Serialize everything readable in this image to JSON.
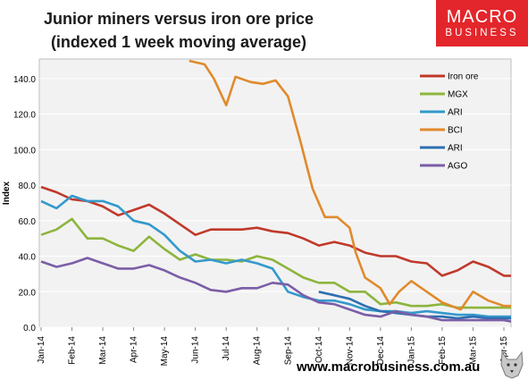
{
  "title_line1": "Junior miners versus iron ore price",
  "title_line2": "(indexed 1 week moving average)",
  "logo": {
    "line1": "MACRO",
    "line2": "BUSINESS",
    "color": "#e3262b"
  },
  "footer_url": "www.macrobusiness.com.au",
  "chart_data": {
    "type": "line",
    "ylabel": "Index",
    "xlabel": "",
    "ylim": [
      0,
      150
    ],
    "yticks": [
      0,
      20,
      40,
      60,
      80,
      100,
      120,
      140
    ],
    "ytick_labels": [
      "0.0",
      "20.0",
      "40.0",
      "60.0",
      "80.0",
      "100.0",
      "120.0",
      "140.0"
    ],
    "categories": [
      "Jan-14",
      "Feb-14",
      "Mar-14",
      "Apr-14",
      "May-14",
      "Jun-14",
      "Jul-14",
      "Aug-14",
      "Sep-14",
      "Oct-14",
      "Nov-14",
      "Dec-14",
      "Jan-15",
      "Feb-15",
      "Mar-15",
      "Apr-15"
    ],
    "grid": true,
    "legend_position": "top-right",
    "plot_background": "#f2f2f2",
    "series": [
      {
        "name": "Iron ore",
        "color": "#c0392b",
        "points": [
          [
            0,
            79
          ],
          [
            0.5,
            76
          ],
          [
            1,
            72
          ],
          [
            1.5,
            71
          ],
          [
            2,
            68
          ],
          [
            2.5,
            63
          ],
          [
            3,
            66
          ],
          [
            3.5,
            69
          ],
          [
            4,
            64
          ],
          [
            4.5,
            58
          ],
          [
            5,
            52
          ],
          [
            5.5,
            55
          ],
          [
            6,
            55
          ],
          [
            6.5,
            55
          ],
          [
            7,
            56
          ],
          [
            7.5,
            54
          ],
          [
            8,
            53
          ],
          [
            8.5,
            50
          ],
          [
            9,
            46
          ],
          [
            9.5,
            48
          ],
          [
            10,
            46
          ],
          [
            10.5,
            42
          ],
          [
            11,
            40
          ],
          [
            11.5,
            40
          ],
          [
            12,
            37
          ],
          [
            12.5,
            36
          ],
          [
            13,
            29
          ],
          [
            13.5,
            32
          ],
          [
            14,
            37
          ],
          [
            14.5,
            34
          ],
          [
            15,
            29
          ],
          [
            15.3,
            29
          ]
        ]
      },
      {
        "name": "MGX",
        "color": "#8db53c",
        "points": [
          [
            0,
            52
          ],
          [
            0.5,
            55
          ],
          [
            1,
            61
          ],
          [
            1.5,
            50
          ],
          [
            2,
            50
          ],
          [
            2.5,
            46
          ],
          [
            3,
            43
          ],
          [
            3.5,
            51
          ],
          [
            4,
            44
          ],
          [
            4.5,
            38
          ],
          [
            5,
            41
          ],
          [
            5.5,
            38
          ],
          [
            6,
            38
          ],
          [
            6.5,
            37
          ],
          [
            7,
            40
          ],
          [
            7.5,
            38
          ],
          [
            8,
            33
          ],
          [
            8.5,
            28
          ],
          [
            9,
            25
          ],
          [
            9.5,
            25
          ],
          [
            10,
            20
          ],
          [
            10.5,
            20
          ],
          [
            11,
            13
          ],
          [
            11.5,
            14
          ],
          [
            12,
            12
          ],
          [
            12.5,
            12
          ],
          [
            13,
            13
          ],
          [
            13.5,
            11
          ],
          [
            14,
            11
          ],
          [
            14.5,
            11
          ],
          [
            15,
            11
          ],
          [
            15.3,
            11
          ]
        ]
      },
      {
        "name": "ARI",
        "color": "#3399cc",
        "points": [
          [
            0,
            71
          ],
          [
            0.5,
            67
          ],
          [
            1,
            74
          ],
          [
            1.5,
            71
          ],
          [
            2,
            71
          ],
          [
            2.5,
            68
          ],
          [
            3,
            60
          ],
          [
            3.5,
            58
          ],
          [
            4,
            52
          ],
          [
            4.5,
            43
          ],
          [
            5,
            37
          ],
          [
            5.5,
            38
          ],
          [
            6,
            36
          ],
          [
            6.5,
            38
          ],
          [
            7,
            36
          ],
          [
            7.5,
            33
          ],
          [
            8,
            20
          ],
          [
            8.5,
            17
          ],
          [
            9,
            15
          ],
          [
            9.5,
            15
          ],
          [
            10,
            13
          ],
          [
            10.5,
            10
          ],
          [
            11,
            9
          ],
          [
            11.5,
            9
          ],
          [
            12,
            8
          ],
          [
            12.5,
            9
          ],
          [
            13,
            8
          ],
          [
            13.5,
            7
          ],
          [
            14,
            7
          ],
          [
            14.5,
            6
          ],
          [
            15,
            6
          ],
          [
            15.3,
            6
          ]
        ]
      },
      {
        "name": "BCI",
        "color": "#e08a2c",
        "points": [
          [
            4.8,
            150
          ],
          [
            5.3,
            148
          ],
          [
            5.6,
            140
          ],
          [
            6.0,
            125
          ],
          [
            6.3,
            141
          ],
          [
            6.8,
            138
          ],
          [
            7.2,
            137
          ],
          [
            7.6,
            139
          ],
          [
            8.0,
            130
          ],
          [
            8.4,
            105
          ],
          [
            8.8,
            78
          ],
          [
            9.2,
            62
          ],
          [
            9.6,
            62
          ],
          [
            10.0,
            56
          ],
          [
            10.2,
            42
          ],
          [
            10.5,
            28
          ],
          [
            11.0,
            22
          ],
          [
            11.3,
            13
          ],
          [
            11.6,
            20
          ],
          [
            12.0,
            26
          ],
          [
            12.5,
            20
          ],
          [
            13.0,
            14
          ],
          [
            13.3,
            12
          ],
          [
            13.6,
            10
          ],
          [
            14.0,
            20
          ],
          [
            14.5,
            15
          ],
          [
            15.0,
            12
          ],
          [
            15.3,
            12
          ]
        ]
      },
      {
        "name": "ARI",
        "color": "#2e6fb0",
        "points": [
          [
            9,
            20
          ],
          [
            9.5,
            18
          ],
          [
            10,
            16
          ],
          [
            10.5,
            12
          ],
          [
            11,
            9
          ],
          [
            11.5,
            8
          ],
          [
            12,
            7
          ],
          [
            12.5,
            6
          ],
          [
            13,
            6
          ],
          [
            13.5,
            5
          ],
          [
            14,
            6
          ],
          [
            14.5,
            5
          ],
          [
            15,
            5
          ],
          [
            15.3,
            5
          ]
        ]
      },
      {
        "name": "AGO",
        "color": "#7b5ea7",
        "points": [
          [
            0,
            37
          ],
          [
            0.5,
            34
          ],
          [
            1,
            36
          ],
          [
            1.5,
            39
          ],
          [
            2,
            36
          ],
          [
            2.5,
            33
          ],
          [
            3,
            33
          ],
          [
            3.5,
            35
          ],
          [
            4,
            32
          ],
          [
            4.5,
            28
          ],
          [
            5,
            25
          ],
          [
            5.5,
            21
          ],
          [
            6,
            20
          ],
          [
            6.5,
            22
          ],
          [
            7,
            22
          ],
          [
            7.5,
            25
          ],
          [
            8,
            24
          ],
          [
            8.5,
            18
          ],
          [
            9,
            14
          ],
          [
            9.5,
            13
          ],
          [
            10,
            10
          ],
          [
            10.5,
            7
          ],
          [
            11,
            6
          ],
          [
            11.5,
            9
          ],
          [
            12,
            7
          ],
          [
            12.5,
            6
          ],
          [
            13,
            4
          ],
          [
            13.5,
            4
          ],
          [
            14,
            4
          ],
          [
            14.5,
            4
          ],
          [
            15,
            4
          ],
          [
            15.3,
            3
          ]
        ]
      }
    ]
  }
}
